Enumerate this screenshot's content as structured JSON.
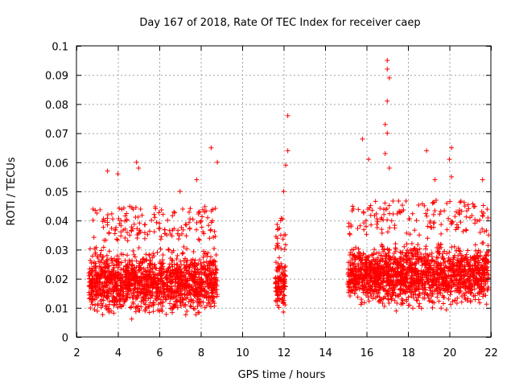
{
  "chart_data": {
    "type": "scatter",
    "title": "Day 167 of 2018, Rate Of TEC Index for receiver caep",
    "xlabel": "GPS time / hours",
    "ylabel": "ROTI / TECUs",
    "xlim": [
      2,
      22
    ],
    "ylim": [
      0,
      0.1
    ],
    "xticks": [
      2,
      4,
      6,
      8,
      10,
      12,
      14,
      16,
      18,
      20,
      22
    ],
    "xtick_labels": [
      "2",
      "4",
      "6",
      "8",
      "10",
      "12",
      "14",
      "16",
      "18",
      "20",
      "22"
    ],
    "yticks": [
      0,
      0.01,
      0.02,
      0.03,
      0.04,
      0.05,
      0.06,
      0.07,
      0.08,
      0.09,
      0.1
    ],
    "ytick_labels": [
      "0",
      "0.01",
      "0.02",
      "0.03",
      "0.04",
      "0.05",
      "0.06",
      "0.07",
      "0.08",
      "0.09",
      "0.1"
    ],
    "grid": true,
    "marker": "+",
    "color": "#ff0000",
    "series": [
      {
        "name": "ROTI",
        "dense_segments": [
          {
            "x_range": [
              2.6,
              8.8
            ],
            "y_range": [
              0.005,
              0.033
            ],
            "y_center": 0.017
          },
          {
            "x_range": [
              11.6,
              12.1
            ],
            "y_range": [
              0.006,
              0.03
            ],
            "y_center": 0.018
          },
          {
            "x_range": [
              15.1,
              21.9
            ],
            "y_range": [
              0.008,
              0.035
            ],
            "y_center": 0.02
          }
        ],
        "notable_points": [
          {
            "x": 3.5,
            "y": 0.057
          },
          {
            "x": 4.0,
            "y": 0.056
          },
          {
            "x": 4.9,
            "y": 0.06
          },
          {
            "x": 5.0,
            "y": 0.058
          },
          {
            "x": 7.0,
            "y": 0.05
          },
          {
            "x": 7.8,
            "y": 0.054
          },
          {
            "x": 8.5,
            "y": 0.065
          },
          {
            "x": 8.8,
            "y": 0.06
          },
          {
            "x": 12.2,
            "y": 0.076
          },
          {
            "x": 12.2,
            "y": 0.064
          },
          {
            "x": 12.1,
            "y": 0.059
          },
          {
            "x": 12.0,
            "y": 0.05
          },
          {
            "x": 15.8,
            "y": 0.068
          },
          {
            "x": 16.1,
            "y": 0.061
          },
          {
            "x": 17.0,
            "y": 0.095
          },
          {
            "x": 17.0,
            "y": 0.092
          },
          {
            "x": 17.1,
            "y": 0.089
          },
          {
            "x": 17.0,
            "y": 0.081
          },
          {
            "x": 16.9,
            "y": 0.073
          },
          {
            "x": 17.0,
            "y": 0.07
          },
          {
            "x": 16.9,
            "y": 0.063
          },
          {
            "x": 17.1,
            "y": 0.058
          },
          {
            "x": 18.9,
            "y": 0.064
          },
          {
            "x": 19.3,
            "y": 0.054
          },
          {
            "x": 20.1,
            "y": 0.065
          },
          {
            "x": 20.0,
            "y": 0.061
          },
          {
            "x": 20.1,
            "y": 0.055
          },
          {
            "x": 21.6,
            "y": 0.054
          }
        ]
      }
    ]
  }
}
